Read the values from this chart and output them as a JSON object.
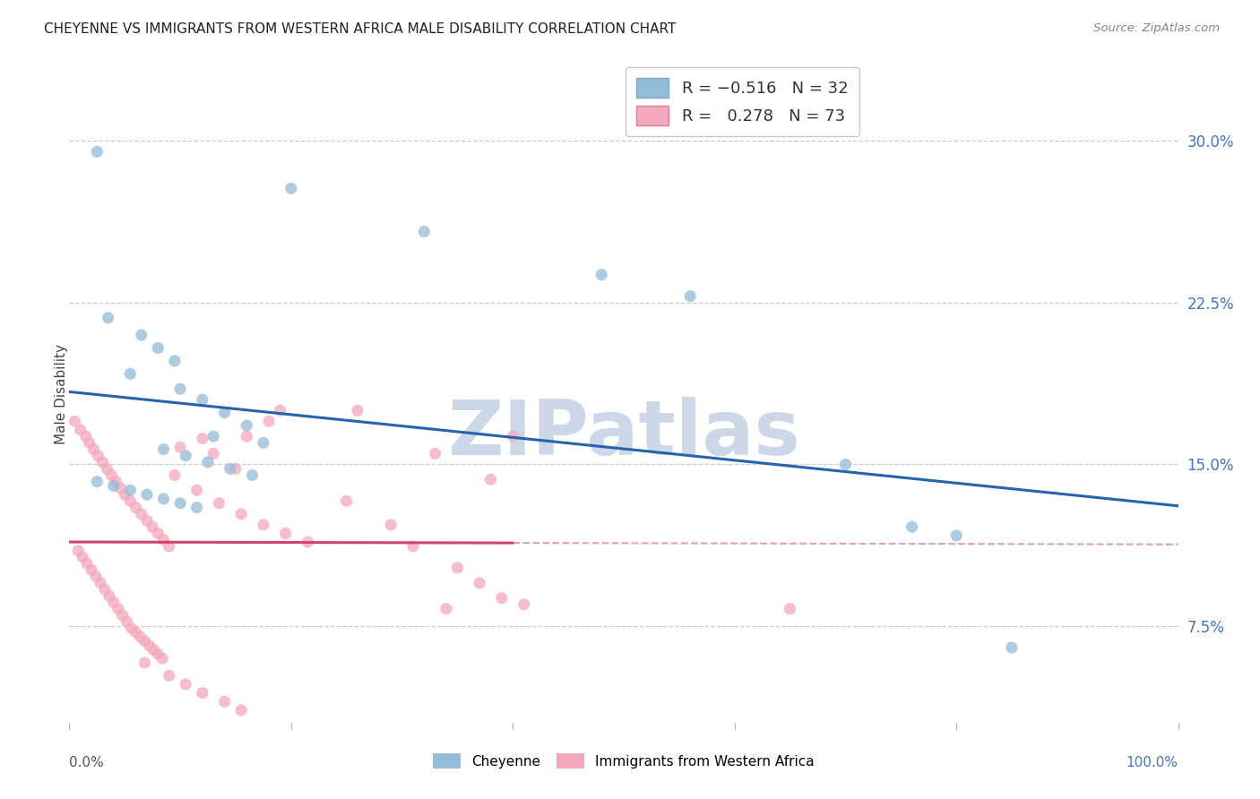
{
  "title": "CHEYENNE VS IMMIGRANTS FROM WESTERN AFRICA MALE DISABILITY CORRELATION CHART",
  "source_text": "Source: ZipAtlas.com",
  "ylabel": "Male Disability",
  "ytick_labels": [
    "7.5%",
    "15.0%",
    "22.5%",
    "30.0%"
  ],
  "ytick_values": [
    0.075,
    0.15,
    0.225,
    0.3
  ],
  "xlim": [
    0.0,
    1.0
  ],
  "ylim": [
    0.03,
    0.335
  ],
  "cheyenne_color": "#92bcd8",
  "immigrants_color": "#f4a8bc",
  "cheyenne_edge_color": "#6a9ec0",
  "immigrants_edge_color": "#e07898",
  "cheyenne_line_color": "#2563ae",
  "immigrants_line_color": "#d04468",
  "immigrants_dashed_color": "#e0a0b0",
  "watermark": "ZIPatlas",
  "watermark_color": "#ccd8e8",
  "background_color": "#ffffff",
  "grid_color": "#cccccc",
  "cheyenne_R": "-0.516",
  "cheyenne_N": "32",
  "immigrants_R": "0.278",
  "immigrants_N": "73",
  "series1_name": "Cheyenne",
  "series2_name": "Immigrants from Western Africa",
  "cheyenne_points": [
    [
      0.025,
      0.295
    ],
    [
      0.2,
      0.278
    ],
    [
      0.32,
      0.258
    ],
    [
      0.48,
      0.238
    ],
    [
      0.56,
      0.228
    ],
    [
      0.035,
      0.218
    ],
    [
      0.065,
      0.21
    ],
    [
      0.08,
      0.204
    ],
    [
      0.095,
      0.198
    ],
    [
      0.055,
      0.192
    ],
    [
      0.1,
      0.185
    ],
    [
      0.12,
      0.18
    ],
    [
      0.14,
      0.174
    ],
    [
      0.16,
      0.168
    ],
    [
      0.13,
      0.163
    ],
    [
      0.175,
      0.16
    ],
    [
      0.085,
      0.157
    ],
    [
      0.105,
      0.154
    ],
    [
      0.125,
      0.151
    ],
    [
      0.145,
      0.148
    ],
    [
      0.165,
      0.145
    ],
    [
      0.025,
      0.142
    ],
    [
      0.04,
      0.14
    ],
    [
      0.055,
      0.138
    ],
    [
      0.07,
      0.136
    ],
    [
      0.085,
      0.134
    ],
    [
      0.1,
      0.132
    ],
    [
      0.115,
      0.13
    ],
    [
      0.7,
      0.15
    ],
    [
      0.76,
      0.121
    ],
    [
      0.8,
      0.117
    ],
    [
      0.85,
      0.065
    ]
  ],
  "immigrants_points": [
    [
      0.005,
      0.17
    ],
    [
      0.01,
      0.166
    ],
    [
      0.015,
      0.163
    ],
    [
      0.018,
      0.16
    ],
    [
      0.022,
      0.157
    ],
    [
      0.026,
      0.154
    ],
    [
      0.03,
      0.151
    ],
    [
      0.034,
      0.148
    ],
    [
      0.038,
      0.145
    ],
    [
      0.042,
      0.142
    ],
    [
      0.046,
      0.139
    ],
    [
      0.05,
      0.136
    ],
    [
      0.055,
      0.133
    ],
    [
      0.06,
      0.13
    ],
    [
      0.065,
      0.127
    ],
    [
      0.07,
      0.124
    ],
    [
      0.075,
      0.121
    ],
    [
      0.08,
      0.118
    ],
    [
      0.085,
      0.115
    ],
    [
      0.09,
      0.112
    ],
    [
      0.008,
      0.11
    ],
    [
      0.012,
      0.107
    ],
    [
      0.016,
      0.104
    ],
    [
      0.02,
      0.101
    ],
    [
      0.024,
      0.098
    ],
    [
      0.028,
      0.095
    ],
    [
      0.032,
      0.092
    ],
    [
      0.036,
      0.089
    ],
    [
      0.04,
      0.086
    ],
    [
      0.044,
      0.083
    ],
    [
      0.048,
      0.08
    ],
    [
      0.052,
      0.077
    ],
    [
      0.056,
      0.074
    ],
    [
      0.06,
      0.072
    ],
    [
      0.064,
      0.07
    ],
    [
      0.068,
      0.068
    ],
    [
      0.072,
      0.066
    ],
    [
      0.076,
      0.064
    ],
    [
      0.08,
      0.062
    ],
    [
      0.084,
      0.06
    ],
    [
      0.1,
      0.158
    ],
    [
      0.12,
      0.162
    ],
    [
      0.13,
      0.155
    ],
    [
      0.15,
      0.148
    ],
    [
      0.16,
      0.163
    ],
    [
      0.18,
      0.17
    ],
    [
      0.19,
      0.175
    ],
    [
      0.095,
      0.145
    ],
    [
      0.115,
      0.138
    ],
    [
      0.135,
      0.132
    ],
    [
      0.155,
      0.127
    ],
    [
      0.175,
      0.122
    ],
    [
      0.195,
      0.118
    ],
    [
      0.215,
      0.114
    ],
    [
      0.068,
      0.058
    ],
    [
      0.09,
      0.052
    ],
    [
      0.105,
      0.048
    ],
    [
      0.12,
      0.044
    ],
    [
      0.14,
      0.04
    ],
    [
      0.155,
      0.036
    ],
    [
      0.34,
      0.083
    ],
    [
      0.41,
      0.085
    ],
    [
      0.65,
      0.083
    ],
    [
      0.26,
      0.175
    ],
    [
      0.4,
      0.163
    ],
    [
      0.33,
      0.155
    ],
    [
      0.38,
      0.143
    ],
    [
      0.25,
      0.133
    ],
    [
      0.29,
      0.122
    ],
    [
      0.31,
      0.112
    ],
    [
      0.35,
      0.102
    ],
    [
      0.37,
      0.095
    ],
    [
      0.39,
      0.088
    ]
  ]
}
